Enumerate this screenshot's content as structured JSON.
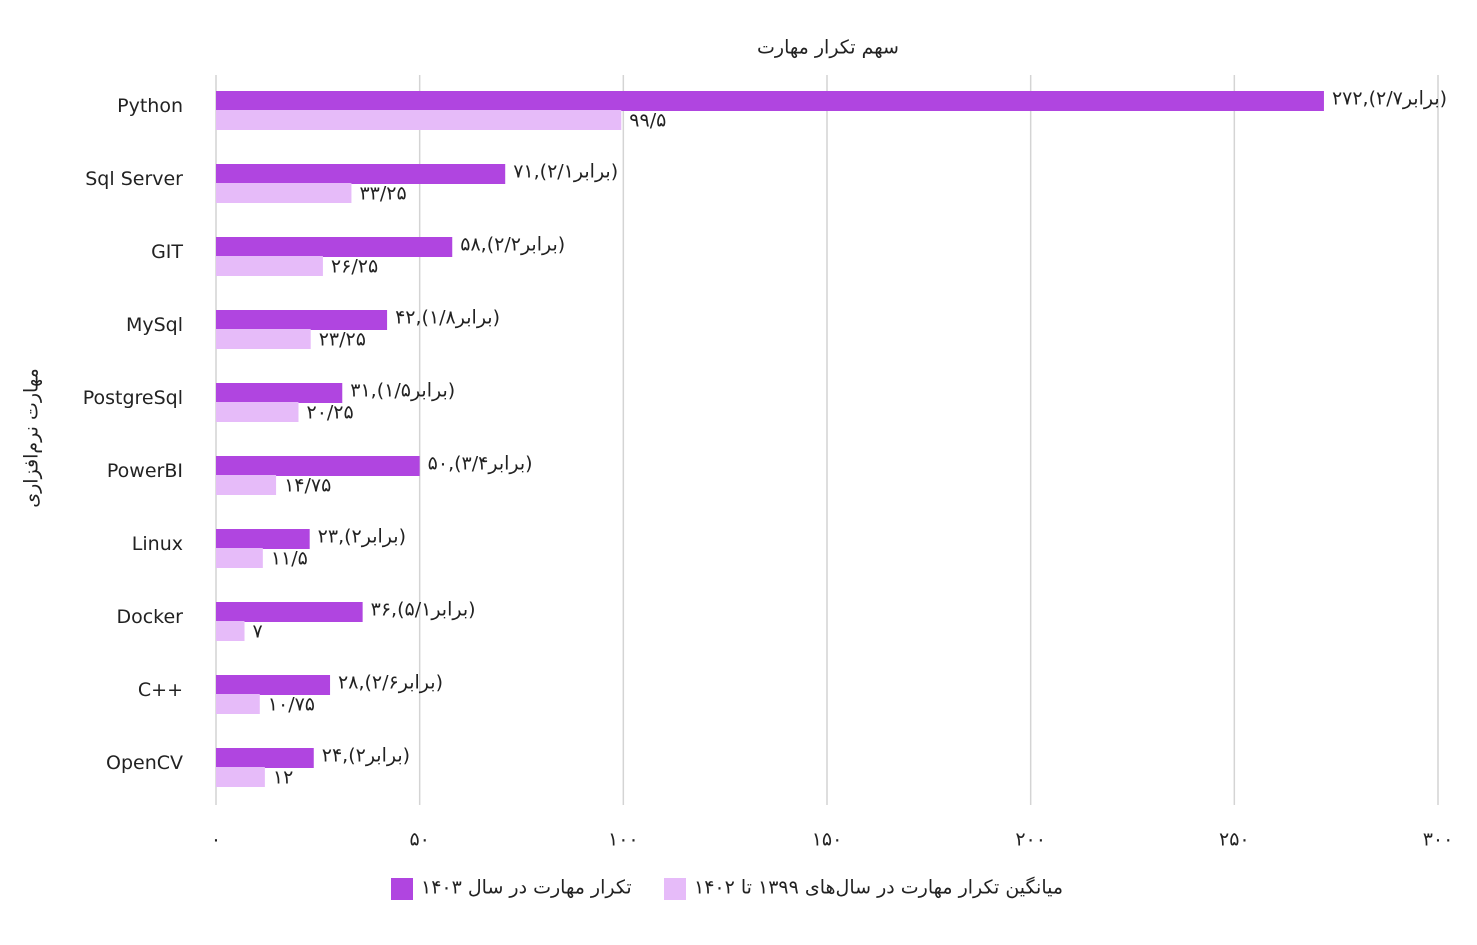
{
  "chart_data": {
    "type": "bar",
    "orientation": "horizontal",
    "title": "سهم تکرار مهارت",
    "y_label": "مهارت نرم‌افزاری",
    "categories": [
      "Python",
      "Sql Server",
      "GIT",
      "MySql",
      "PostgreSql",
      "PowerBI",
      "Linux",
      "Docker",
      "C++",
      "OpenCV"
    ],
    "series": [
      {
        "name": "تکرار مهارت در سال ۱۴۰۳",
        "color": "#b045e0",
        "values": [
          272,
          71,
          58,
          42,
          31,
          50,
          23,
          36,
          28,
          24
        ],
        "value_labels": [
          "۲۷۲,(۲/۷برابر)",
          "۷۱,(۲/۱برابر)",
          "۵۸,(۲/۲برابر)",
          "۴۲,(۱/۸برابر)",
          "۳۱,(۱/۵برابر)",
          "۵۰,(۳/۴برابر)",
          "۲۳,(۲برابر)",
          "۳۶,(۵/۱برابر)",
          "۲۸,(۲/۶برابر)",
          "۲۴,(۲برابر)"
        ]
      },
      {
        "name": "میانگین تکرار مهارت در سال‌های ۱۳۹۹ تا ۱۴۰۲",
        "color": "#e6bbf9",
        "values": [
          99.5,
          33.25,
          26.25,
          23.25,
          20.25,
          14.75,
          11.5,
          7,
          10.75,
          12
        ],
        "value_labels": [
          "۹۹/۵",
          "۳۳/۲۵",
          "۲۶/۲۵",
          "۲۳/۲۵",
          "۲۰/۲۵",
          "۱۴/۷۵",
          "۱۱/۵",
          "۷",
          "۱۰/۷۵",
          "۱۲"
        ]
      }
    ],
    "xlim": [
      0,
      300
    ],
    "xticks": [
      {
        "value": 0,
        "label": "۰"
      },
      {
        "value": 50,
        "label": "۵۰"
      },
      {
        "value": 100,
        "label": "۱۰۰"
      },
      {
        "value": 150,
        "label": "۱۵۰"
      },
      {
        "value": 200,
        "label": "۲۰۰"
      },
      {
        "value": 250,
        "label": "۲۵۰"
      },
      {
        "value": 300,
        "label": "۳۰۰"
      }
    ],
    "grid": true
  }
}
